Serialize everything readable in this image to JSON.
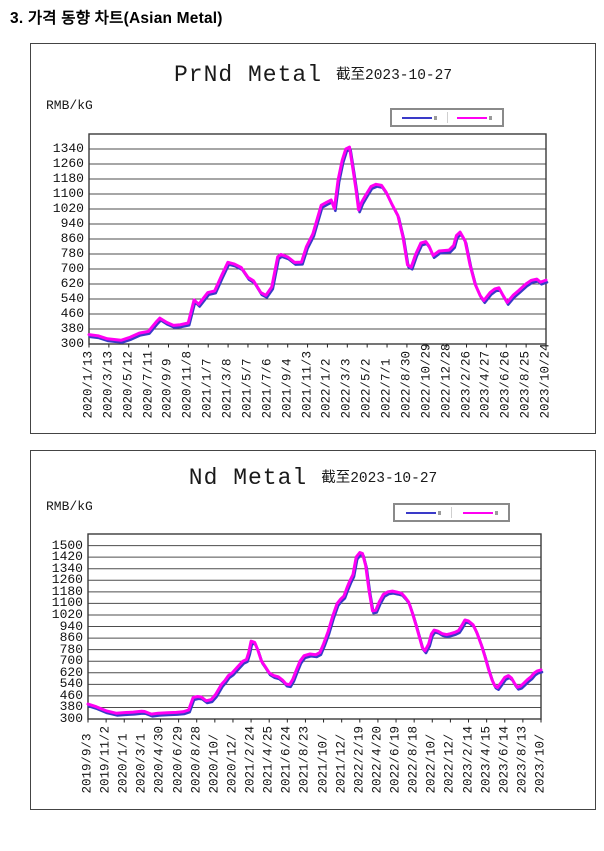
{
  "page": {
    "heading": "3. 가격 동향 차트(Asian Metal)"
  },
  "colors": {
    "line_primary": "#FF00F2",
    "line_secondary": "#3A3AC8",
    "gridline": "#4d4d4d",
    "plot_border": "#3a3a3a"
  },
  "chart_data": [
    {
      "type": "line",
      "title": "PrNd Metal",
      "subtitle": "截至2023-10-27",
      "ylabel": "RMB/kG",
      "grid": true,
      "legend_position": "top-right",
      "y_axis": {
        "min": 300,
        "max": 1340,
        "top": 1420,
        "step": 80
      },
      "x_labels": [
        "2020/1/13",
        "2020/3/13",
        "2020/5/12",
        "2020/7/11",
        "2020/9/9",
        "2020/11/8",
        "2021/1/7",
        "2021/3/8",
        "2021/5/7",
        "2021/7/6",
        "2021/9/4",
        "2021/11/3",
        "2022/1/2",
        "2022/3/3",
        "2022/5/2",
        "2022/7/1",
        "2022/8/30",
        "2022/10/29",
        "2022/12/28",
        "2023/2/26",
        "2023/4/27",
        "2023/6/26",
        "2023/8/25",
        "2023/10/24"
      ],
      "series": [
        {
          "name": "price-blue",
          "color": "#3A3AC8"
        },
        {
          "name": "price-magenta",
          "color": "#FF00F2"
        }
      ],
      "points_frac_value": [
        [
          0.0,
          350
        ],
        [
          0.02,
          344
        ],
        [
          0.04,
          328
        ],
        [
          0.07,
          320
        ],
        [
          0.09,
          336
        ],
        [
          0.11,
          358
        ],
        [
          0.13,
          367
        ],
        [
          0.148,
          420
        ],
        [
          0.155,
          438
        ],
        [
          0.17,
          415
        ],
        [
          0.185,
          399
        ],
        [
          0.2,
          403
        ],
        [
          0.217,
          412
        ],
        [
          0.23,
          535
        ],
        [
          0.24,
          512
        ],
        [
          0.26,
          574
        ],
        [
          0.275,
          583
        ],
        [
          0.29,
          664
        ],
        [
          0.304,
          736
        ],
        [
          0.317,
          727
        ],
        [
          0.333,
          708
        ],
        [
          0.348,
          655
        ],
        [
          0.36,
          637
        ],
        [
          0.376,
          574
        ],
        [
          0.387,
          560
        ],
        [
          0.4,
          605
        ],
        [
          0.413,
          765
        ],
        [
          0.42,
          778
        ],
        [
          0.435,
          764
        ],
        [
          0.45,
          735
        ],
        [
          0.465,
          737
        ],
        [
          0.476,
          820
        ],
        [
          0.49,
          888
        ],
        [
          0.508,
          1040
        ],
        [
          0.52,
          1056
        ],
        [
          0.53,
          1068
        ],
        [
          0.537,
          1022
        ],
        [
          0.545,
          1175
        ],
        [
          0.554,
          1280
        ],
        [
          0.562,
          1340
        ],
        [
          0.57,
          1350
        ],
        [
          0.578,
          1228
        ],
        [
          0.584,
          1127
        ],
        [
          0.59,
          1015
        ],
        [
          0.597,
          1058
        ],
        [
          0.607,
          1100
        ],
        [
          0.617,
          1140
        ],
        [
          0.628,
          1152
        ],
        [
          0.64,
          1146
        ],
        [
          0.65,
          1110
        ],
        [
          0.662,
          1050
        ],
        [
          0.676,
          985
        ],
        [
          0.687,
          870
        ],
        [
          0.697,
          722
        ],
        [
          0.705,
          710
        ],
        [
          0.715,
          780
        ],
        [
          0.726,
          838
        ],
        [
          0.737,
          846
        ],
        [
          0.744,
          822
        ],
        [
          0.753,
          772
        ],
        [
          0.766,
          796
        ],
        [
          0.788,
          801
        ],
        [
          0.798,
          826
        ],
        [
          0.804,
          878
        ],
        [
          0.812,
          897
        ],
        [
          0.823,
          850
        ],
        [
          0.834,
          720
        ],
        [
          0.845,
          618
        ],
        [
          0.856,
          558
        ],
        [
          0.864,
          532
        ],
        [
          0.878,
          575
        ],
        [
          0.888,
          594
        ],
        [
          0.897,
          600
        ],
        [
          0.906,
          560
        ],
        [
          0.915,
          522
        ],
        [
          0.928,
          560
        ],
        [
          0.94,
          585
        ],
        [
          0.956,
          620
        ],
        [
          0.968,
          640
        ],
        [
          0.98,
          646
        ],
        [
          0.988,
          630
        ],
        [
          1.0,
          641
        ]
      ]
    },
    {
      "type": "line",
      "title": "Nd Metal",
      "subtitle": "截至2023-10-27",
      "ylabel": "RMB/kG",
      "grid": true,
      "legend_position": "top-right",
      "y_axis": {
        "min": 300,
        "max": 1500,
        "top": 1580,
        "step": 80
      },
      "x_labels": [
        "2019/9/3",
        "2019/11/2",
        "2020/1/1",
        "2020/3/1",
        "2020/4/30",
        "2020/6/29",
        "2020/8/28",
        "2020/10/",
        "2020/12/",
        "2021/2/24",
        "2021/4/25",
        "2021/6/24",
        "2021/8/23",
        "2021/10/",
        "2021/12/",
        "2022/2/19",
        "2022/4/20",
        "2022/6/19",
        "2022/8/18",
        "2022/10/",
        "2022/12/",
        "2023/2/14",
        "2023/4/15",
        "2023/6/14",
        "2023/8/13",
        "2023/10/"
      ],
      "series": [
        {
          "name": "price-blue",
          "color": "#3A3AC8"
        },
        {
          "name": "price-magenta",
          "color": "#FF00F2"
        }
      ],
      "points_frac_value": [
        [
          0.0,
          403
        ],
        [
          0.018,
          385
        ],
        [
          0.04,
          357
        ],
        [
          0.062,
          340
        ],
        [
          0.08,
          344
        ],
        [
          0.1,
          348
        ],
        [
          0.118,
          354
        ],
        [
          0.125,
          352
        ],
        [
          0.14,
          334
        ],
        [
          0.155,
          340
        ],
        [
          0.175,
          343
        ],
        [
          0.195,
          346
        ],
        [
          0.21,
          350
        ],
        [
          0.222,
          362
        ],
        [
          0.232,
          448
        ],
        [
          0.242,
          456
        ],
        [
          0.25,
          452
        ],
        [
          0.261,
          426
        ],
        [
          0.272,
          434
        ],
        [
          0.282,
          470
        ],
        [
          0.295,
          540
        ],
        [
          0.302,
          565
        ],
        [
          0.31,
          600
        ],
        [
          0.318,
          618
        ],
        [
          0.33,
          660
        ],
        [
          0.342,
          700
        ],
        [
          0.35,
          712
        ],
        [
          0.355,
          762
        ],
        [
          0.36,
          838
        ],
        [
          0.368,
          830
        ],
        [
          0.375,
          775
        ],
        [
          0.383,
          700
        ],
        [
          0.39,
          668
        ],
        [
          0.4,
          620
        ],
        [
          0.41,
          600
        ],
        [
          0.42,
          592
        ],
        [
          0.43,
          568
        ],
        [
          0.437,
          542
        ],
        [
          0.445,
          538
        ],
        [
          0.452,
          575
        ],
        [
          0.46,
          640
        ],
        [
          0.468,
          700
        ],
        [
          0.477,
          738
        ],
        [
          0.49,
          750
        ],
        [
          0.503,
          745
        ],
        [
          0.512,
          760
        ],
        [
          0.52,
          820
        ],
        [
          0.53,
          905
        ],
        [
          0.54,
          1010
        ],
        [
          0.55,
          1100
        ],
        [
          0.558,
          1130
        ],
        [
          0.565,
          1150
        ],
        [
          0.572,
          1210
        ],
        [
          0.578,
          1255
        ],
        [
          0.585,
          1300
        ],
        [
          0.592,
          1420
        ],
        [
          0.6,
          1452
        ],
        [
          0.606,
          1445
        ],
        [
          0.613,
          1360
        ],
        [
          0.62,
          1195
        ],
        [
          0.628,
          1048
        ],
        [
          0.635,
          1052
        ],
        [
          0.643,
          1110
        ],
        [
          0.652,
          1162
        ],
        [
          0.662,
          1180
        ],
        [
          0.672,
          1185
        ],
        [
          0.682,
          1178
        ],
        [
          0.692,
          1170
        ],
        [
          0.7,
          1142
        ],
        [
          0.708,
          1108
        ],
        [
          0.716,
          1035
        ],
        [
          0.724,
          950
        ],
        [
          0.732,
          862
        ],
        [
          0.738,
          795
        ],
        [
          0.744,
          772
        ],
        [
          0.752,
          820
        ],
        [
          0.758,
          888
        ],
        [
          0.764,
          915
        ],
        [
          0.772,
          908
        ],
        [
          0.782,
          890
        ],
        [
          0.792,
          884
        ],
        [
          0.8,
          890
        ],
        [
          0.81,
          900
        ],
        [
          0.818,
          912
        ],
        [
          0.826,
          952
        ],
        [
          0.832,
          985
        ],
        [
          0.84,
          978
        ],
        [
          0.85,
          952
        ],
        [
          0.858,
          900
        ],
        [
          0.868,
          815
        ],
        [
          0.876,
          735
        ],
        [
          0.884,
          645
        ],
        [
          0.892,
          570
        ],
        [
          0.898,
          530
        ],
        [
          0.904,
          518
        ],
        [
          0.912,
          552
        ],
        [
          0.92,
          588
        ],
        [
          0.928,
          600
        ],
        [
          0.935,
          582
        ],
        [
          0.942,
          545
        ],
        [
          0.948,
          520
        ],
        [
          0.955,
          527
        ],
        [
          0.962,
          548
        ],
        [
          0.97,
          572
        ],
        [
          0.978,
          592
        ],
        [
          0.985,
          618
        ],
        [
          0.992,
          633
        ],
        [
          1.0,
          640
        ]
      ]
    }
  ]
}
